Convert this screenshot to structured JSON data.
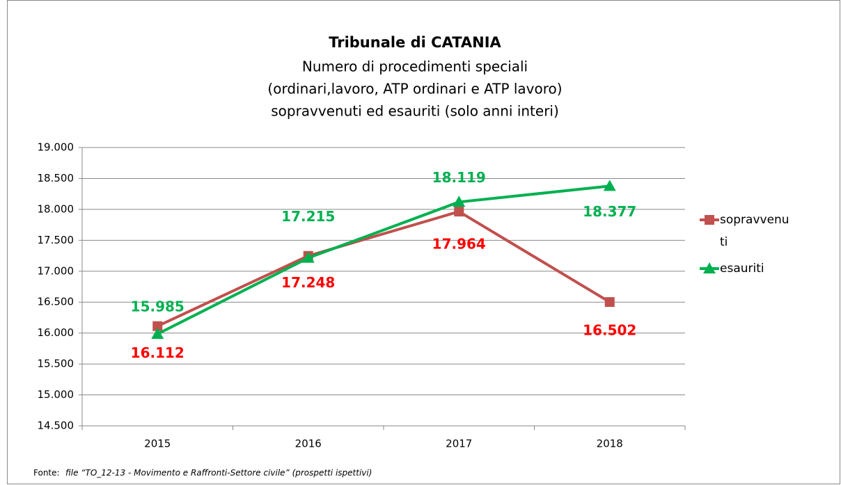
{
  "chart_data": {
    "type": "line",
    "title": "Tribunale di CATANIA",
    "subtitle": [
      "Numero di procedimenti speciali",
      "(ordinari,lavoro, ATP ordinari e ATP lavoro)",
      "sopravvenuti ed esauriti (solo anni interi)"
    ],
    "categories": [
      "2015",
      "2016",
      "2017",
      "2018"
    ],
    "series": [
      {
        "name": "sopravvenuti",
        "color": "#c0504d",
        "label_color": "#ff0000",
        "marker": "square",
        "values": [
          16112,
          17248,
          17964,
          16502
        ],
        "value_labels": [
          "16.112",
          "17.248",
          "17.964",
          "16.502"
        ]
      },
      {
        "name": "esauriti",
        "color": "#00b050",
        "label_color": "#00b050",
        "marker": "triangle",
        "values": [
          15985,
          17215,
          18119,
          18377
        ],
        "value_labels": [
          "15.985",
          "17.215",
          "18.119",
          "18.377"
        ]
      }
    ],
    "ylim": [
      14500,
      19000
    ],
    "yticks": [
      {
        "value": 14500,
        "label": "14.500"
      },
      {
        "value": 15000,
        "label": "15.000"
      },
      {
        "value": 15500,
        "label": "15.500"
      },
      {
        "value": 16000,
        "label": "16.000"
      },
      {
        "value": 16500,
        "label": "16.500"
      },
      {
        "value": 17000,
        "label": "17.000"
      },
      {
        "value": 17500,
        "label": "17.500"
      },
      {
        "value": 18000,
        "label": "18.000"
      },
      {
        "value": 18500,
        "label": "18.500"
      },
      {
        "value": 19000,
        "label": "19.000"
      }
    ],
    "grid": true,
    "legend": "right",
    "source_label": "Fonte:",
    "source": "file “TO_12-13 - Movimento e Raffronti-Settore civile” (prospetti ispettivi)"
  }
}
